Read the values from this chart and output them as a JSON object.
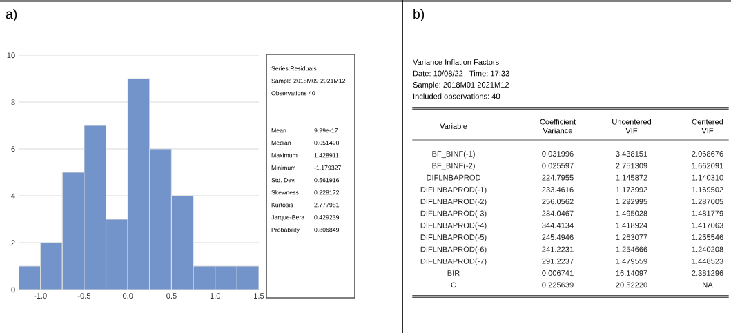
{
  "chart_data": [
    {
      "type": "histogram",
      "title": "a)",
      "bins": [
        -1.25,
        -1.0,
        -0.75,
        -0.5,
        -0.25,
        0.0,
        0.25,
        0.5,
        0.75,
        1.0,
        1.25,
        1.5
      ],
      "values": [
        1,
        2,
        5,
        7,
        3,
        9,
        6,
        4,
        1,
        1,
        1
      ],
      "color": "#7393cb",
      "xlim": [
        -1.25,
        1.5
      ],
      "xticks": [
        {
          "value": -1.0,
          "label": "-1.0"
        },
        {
          "value": -0.5,
          "label": "-0.5"
        },
        {
          "value": 0.0,
          "label": "0.0"
        },
        {
          "value": 0.5,
          "label": "0.5"
        },
        {
          "value": 1.0,
          "label": "1.0"
        },
        {
          "value": 1.5,
          "label": "1.5"
        }
      ],
      "ylim": [
        0,
        10
      ],
      "yticks": [
        0,
        2,
        4,
        6,
        8,
        10
      ],
      "grid": "y",
      "annotations": [
        "Series:Residuals",
        "Sample 2018M09 2021M12",
        "Observations 40",
        "Mean\t9.99e-17",
        "Median\t0.051490",
        "Maximum\t1.428911",
        "Minimum\t-1.179327",
        "Std. Dev.\t0.561916",
        "Skewness\t0.228172",
        "Kurtosis\t2.777981",
        "Jarque-Bera\t0.429239",
        "Probability\t0.806849"
      ]
    },
    {
      "type": "other",
      "title": "b)",
      "annotations": [
        "Variance Inflation Factors",
        "Date: 10/08/22   Time: 17:33",
        "Sample: 2018M01 2021M12",
        "Included observations: 40",
        "Variable",
        "Coefficient\nVariance",
        "Uncentered\nVIF",
        "Centered\nVIF",
        "BF_BINF(-1)",
        "0.031996",
        "3.438151",
        "2.068676",
        "BF_BINF(-2)",
        "0.025597",
        "2.751309",
        "1.662091",
        "DIFLNBAPROD",
        "224.7955",
        "1.145872",
        "1.140310",
        "DIFLNBAPROD(-1)",
        "233.4616",
        "1.173992",
        "1.169502",
        "DIFLNBAPROD(-2)",
        "256.0562",
        "1.292995",
        "1.287005",
        "DIFLNBAPROD(-3)",
        "284.0467",
        "1.495028",
        "1.481779",
        "DIFLNBAPROD(-4)",
        "344.4134",
        "1.418924",
        "1.417063",
        "DIFLNBAPROD(-5)",
        "245.4946",
        "1.263077",
        "1.255546",
        "DIFLNBAPROD(-6)",
        "241.2231",
        "1.254666",
        "1.240208",
        "DIFLNBAPROD(-7)",
        "291.2237",
        "1.479559",
        "1.448523",
        "BIR",
        "0.006741",
        "16.14097",
        "2.381296",
        "C",
        "0.225639",
        "20.52220",
        "NA"
      ]
    }
  ]
}
